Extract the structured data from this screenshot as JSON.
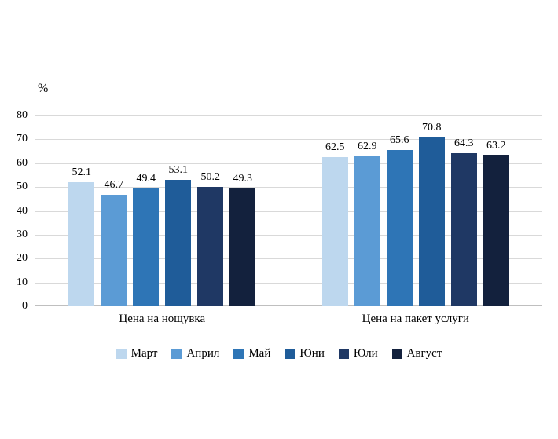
{
  "chart_data": {
    "type": "bar",
    "title": "",
    "ylabel": "%",
    "xlabel": "",
    "ylim": [
      0,
      80
    ],
    "yticks": [
      0,
      10,
      20,
      30,
      40,
      50,
      60,
      70,
      80
    ],
    "grid": true,
    "legend_position": "bottom",
    "categories": [
      "Цена на нощувка",
      "Цена на пакет услуги"
    ],
    "series": [
      {
        "name": "Март",
        "color": "#bdd7ee",
        "values": [
          52.1,
          62.5
        ]
      },
      {
        "name": "Април",
        "color": "#5b9bd5",
        "values": [
          46.7,
          62.9
        ]
      },
      {
        "name": "Май",
        "color": "#2e75b6",
        "values": [
          49.4,
          65.6
        ]
      },
      {
        "name": "Юни",
        "color": "#1f5c99",
        "values": [
          53.1,
          70.8
        ]
      },
      {
        "name": "Юли",
        "color": "#1f3864",
        "values": [
          50.2,
          64.3
        ]
      },
      {
        "name": "Август",
        "color": "#13213d",
        "values": [
          49.3,
          63.2
        ]
      }
    ]
  }
}
